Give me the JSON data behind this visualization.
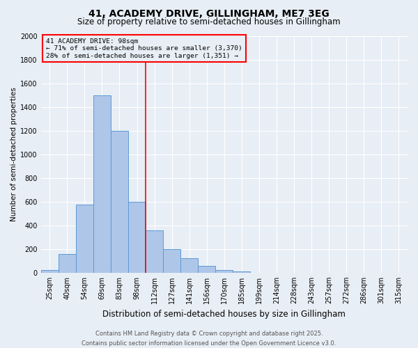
{
  "title_line1": "41, ACADEMY DRIVE, GILLINGHAM, ME7 3EG",
  "title_line2": "Size of property relative to semi-detached houses in Gillingham",
  "xlabel": "Distribution of semi-detached houses by size in Gillingham",
  "ylabel": "Number of semi-detached properties",
  "bar_labels": [
    "25sqm",
    "40sqm",
    "54sqm",
    "69sqm",
    "83sqm",
    "98sqm",
    "112sqm",
    "127sqm",
    "141sqm",
    "156sqm",
    "170sqm",
    "185sqm",
    "199sqm",
    "214sqm",
    "228sqm",
    "243sqm",
    "257sqm",
    "272sqm",
    "286sqm",
    "301sqm",
    "315sqm"
  ],
  "bar_values": [
    20,
    160,
    575,
    1500,
    1200,
    600,
    360,
    200,
    125,
    60,
    20,
    10,
    0,
    0,
    0,
    0,
    0,
    0,
    0,
    0,
    0
  ],
  "bar_color": "#aec6e8",
  "bar_edge_color": "#5b9bd5",
  "red_line_x": 5,
  "annotation_title": "41 ACADEMY DRIVE: 98sqm",
  "annotation_line2": "← 71% of semi-detached houses are smaller (3,370)",
  "annotation_line3": "28% of semi-detached houses are larger (1,351) →",
  "ylim": [
    0,
    2000
  ],
  "yticks": [
    0,
    200,
    400,
    600,
    800,
    1000,
    1200,
    1400,
    1600,
    1800,
    2000
  ],
  "footnote1": "Contains HM Land Registry data © Crown copyright and database right 2025.",
  "footnote2": "Contains public sector information licensed under the Open Government Licence v3.0.",
  "bg_color": "#e8eef5",
  "grid_color": "#ffffff",
  "title1_fontsize": 10,
  "title2_fontsize": 8.5,
  "xlabel_fontsize": 8.5,
  "ylabel_fontsize": 7.5,
  "tick_fontsize": 7,
  "annot_fontsize": 6.8,
  "footnote_fontsize": 6
}
